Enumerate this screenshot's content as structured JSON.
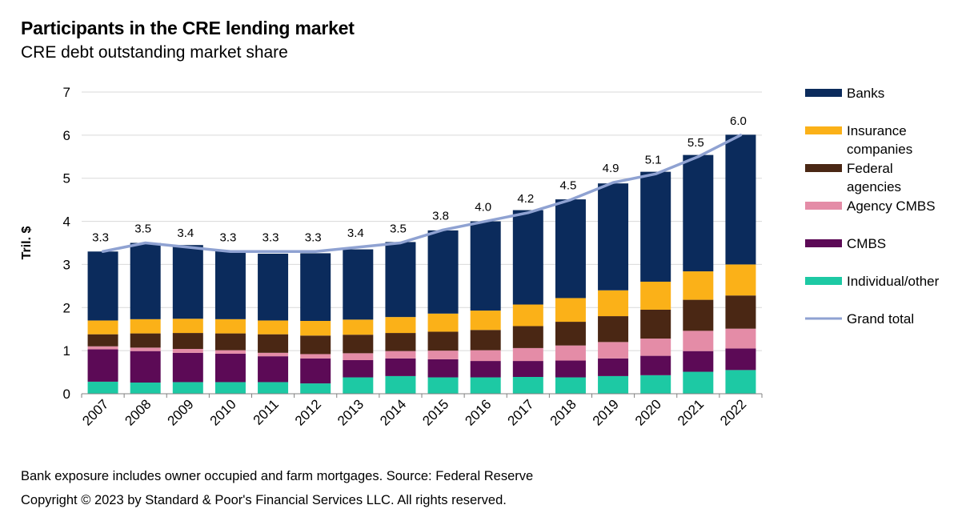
{
  "header": {
    "title": "Participants in the CRE lending market",
    "subtitle": "CRE debt outstanding market share"
  },
  "footer": {
    "note": "Bank exposure includes owner occupied and farm mortgages. Source: Federal Reserve",
    "copyright": "Copyright © 2023 by Standard & Poor's Financial Services LLC. All rights reserved."
  },
  "chart_data": {
    "type": "bar",
    "stacked": true,
    "title": "Participants in the CRE lending market",
    "subtitle": "CRE debt outstanding market share",
    "xlabel": "",
    "ylabel": "Tril. $",
    "ylim": [
      0,
      7
    ],
    "yticks": [
      0,
      1,
      2,
      3,
      4,
      5,
      6,
      7
    ],
    "grid": true,
    "legend_position": "right",
    "categories": [
      "2007",
      "2008",
      "2009",
      "2010",
      "2011",
      "2012",
      "2013",
      "2014",
      "2015",
      "2016",
      "2017",
      "2018",
      "2019",
      "2020",
      "2021",
      "2022"
    ],
    "series": [
      {
        "name": "Individual/other",
        "color": "#1dc9a4",
        "values": [
          0.28,
          0.26,
          0.27,
          0.27,
          0.27,
          0.24,
          0.38,
          0.41,
          0.38,
          0.38,
          0.39,
          0.38,
          0.41,
          0.43,
          0.51,
          0.55
        ]
      },
      {
        "name": "CMBS",
        "color": "#5c0a56",
        "values": [
          0.75,
          0.73,
          0.68,
          0.66,
          0.6,
          0.58,
          0.4,
          0.41,
          0.42,
          0.38,
          0.37,
          0.39,
          0.41,
          0.45,
          0.48,
          0.5
        ]
      },
      {
        "name": "Agency CMBS",
        "color": "#e48ca7",
        "values": [
          0.07,
          0.08,
          0.09,
          0.08,
          0.08,
          0.1,
          0.16,
          0.17,
          0.2,
          0.25,
          0.3,
          0.35,
          0.38,
          0.4,
          0.47,
          0.46
        ]
      },
      {
        "name": "Federal agencies",
        "color": "#4a2714",
        "values": [
          0.28,
          0.33,
          0.37,
          0.39,
          0.43,
          0.43,
          0.43,
          0.42,
          0.44,
          0.47,
          0.51,
          0.55,
          0.6,
          0.67,
          0.72,
          0.77
        ]
      },
      {
        "name": "Insurance companies",
        "color": "#fbb118",
        "values": [
          0.32,
          0.33,
          0.33,
          0.33,
          0.32,
          0.34,
          0.35,
          0.37,
          0.42,
          0.45,
          0.5,
          0.55,
          0.6,
          0.65,
          0.66,
          0.72
        ]
      },
      {
        "name": "Banks",
        "color": "#0b2b5c",
        "values": [
          1.6,
          1.77,
          1.71,
          1.59,
          1.55,
          1.57,
          1.63,
          1.74,
          1.93,
          2.07,
          2.19,
          2.29,
          2.48,
          2.55,
          2.7,
          3.01
        ]
      }
    ],
    "total_line": {
      "name": "Grand total",
      "color": "#8fa2d2",
      "values": [
        3.3,
        3.5,
        3.4,
        3.3,
        3.3,
        3.3,
        3.4,
        3.5,
        3.8,
        4.0,
        4.2,
        4.5,
        4.9,
        5.1,
        5.5,
        6.0
      ],
      "labels": [
        "3.3",
        "3.5",
        "3.4",
        "3.3",
        "3.3",
        "3.3",
        "3.4",
        "3.5",
        "3.8",
        "4.0",
        "4.2",
        "4.5",
        "4.9",
        "5.1",
        "5.5",
        "6.0"
      ]
    },
    "legend": [
      {
        "label": "Banks",
        "color": "#0b2b5c",
        "kind": "box"
      },
      {
        "label": "Insurance companies",
        "lines": [
          "Insurance",
          "companies"
        ],
        "color": "#fbb118",
        "kind": "box"
      },
      {
        "label": "Federal agencies",
        "lines": [
          "Federal",
          "agencies"
        ],
        "color": "#4a2714",
        "kind": "box"
      },
      {
        "label": "Agency CMBS",
        "color": "#e48ca7",
        "kind": "box"
      },
      {
        "label": "CMBS",
        "color": "#5c0a56",
        "kind": "box"
      },
      {
        "label": "Individual/other",
        "color": "#1dc9a4",
        "kind": "box"
      },
      {
        "label": "Grand total",
        "color": "#8fa2d2",
        "kind": "line"
      }
    ]
  }
}
